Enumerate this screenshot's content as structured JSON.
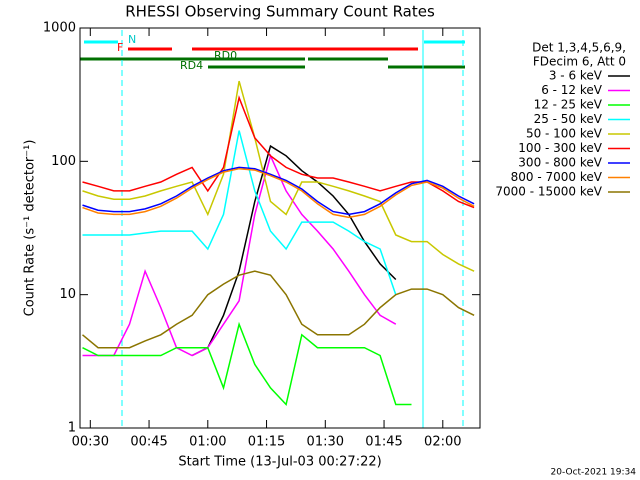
{
  "chart_data": {
    "type": "line",
    "title": "RHESSI Observing Summary Count Rates",
    "xlabel": "Start Time (13-Jul-03 00:27:22)",
    "ylabel": "Count Rate (s⁻¹ detector⁻¹)",
    "legend_header": [
      "Det 1,3,4,5,6,9,",
      "FDecim 6, Att 0"
    ],
    "flags": [
      "N",
      "F",
      "RD0",
      "RD4"
    ],
    "timestamp": "20-Oct-2021 19:34",
    "log_y": true,
    "xlim": [
      27.37,
      129.5
    ],
    "ylim": [
      1,
      1000
    ],
    "yticks": [
      1,
      10,
      100,
      1000
    ],
    "xticks": [
      {
        "value": 30,
        "label": "00:30"
      },
      {
        "value": 45,
        "label": "00:45"
      },
      {
        "value": 60,
        "label": "01:00"
      },
      {
        "value": 75,
        "label": "01:15"
      },
      {
        "value": 90,
        "label": "01:30"
      },
      {
        "value": 105,
        "label": "01:45"
      },
      {
        "value": 120,
        "label": "02:00"
      }
    ],
    "x": [
      28,
      32,
      36,
      40,
      44,
      48,
      52,
      56,
      60,
      64,
      68,
      72,
      76,
      80,
      84,
      88,
      92,
      96,
      100,
      104,
      108,
      112,
      116,
      120,
      124,
      128
    ],
    "series": [
      {
        "name": "3 - 6 keV",
        "color": "#000000",
        "values": [
          null,
          null,
          null,
          null,
          null,
          null,
          null,
          3.5,
          4,
          7,
          15,
          50,
          130,
          110,
          85,
          70,
          55,
          40,
          25,
          17,
          13,
          null,
          null,
          null,
          null,
          null
        ]
      },
      {
        "name": "6 - 12 keV",
        "color": "#ff00ff",
        "values": [
          3.5,
          3.5,
          3.5,
          6,
          15,
          8,
          4,
          3.5,
          4,
          6,
          9,
          40,
          110,
          60,
          40,
          30,
          22,
          15,
          10,
          7,
          6,
          null,
          null,
          null,
          null,
          null
        ]
      },
      {
        "name": "12 - 25 keV",
        "color": "#00ff00",
        "values": [
          4,
          3.5,
          3.5,
          3.5,
          3.5,
          3.5,
          4,
          4,
          4,
          2,
          6,
          3,
          2,
          1.5,
          5,
          4,
          4,
          4,
          4,
          3.5,
          1.5,
          1.5,
          null,
          null,
          null,
          null
        ]
      },
      {
        "name": "25 - 50 keV",
        "color": "#00ffff",
        "values": [
          28,
          28,
          28,
          28,
          29,
          30,
          30,
          30,
          22,
          40,
          170,
          60,
          30,
          22,
          35,
          35,
          35,
          30,
          25,
          22,
          10,
          null,
          null,
          null,
          null,
          null
        ]
      },
      {
        "name": "50 - 100 keV",
        "color": "#c8c800",
        "values": [
          60,
          55,
          52,
          52,
          55,
          60,
          65,
          70,
          40,
          80,
          400,
          150,
          50,
          40,
          70,
          70,
          65,
          60,
          55,
          50,
          28,
          25,
          25,
          20,
          17,
          15
        ]
      },
      {
        "name": "100 - 300 keV",
        "color": "#ff0000",
        "values": [
          70,
          65,
          60,
          60,
          65,
          70,
          80,
          90,
          60,
          90,
          300,
          150,
          110,
          90,
          80,
          75,
          75,
          70,
          65,
          60,
          65,
          70,
          70,
          60,
          50,
          45
        ]
      },
      {
        "name": "300 - 800 keV",
        "color": "#0000ff",
        "values": [
          47,
          43,
          42,
          42,
          44,
          48,
          55,
          65,
          75,
          85,
          90,
          88,
          80,
          72,
          62,
          50,
          42,
          40,
          42,
          48,
          58,
          68,
          72,
          65,
          55,
          48
        ]
      },
      {
        "name": "800 - 7000 keV",
        "color": "#ff8000",
        "values": [
          45,
          41,
          40,
          40,
          42,
          46,
          53,
          63,
          73,
          83,
          88,
          86,
          78,
          70,
          60,
          48,
          40,
          38,
          40,
          46,
          56,
          66,
          70,
          63,
          53,
          46
        ]
      },
      {
        "name": "7000 - 15000 keV",
        "color": "#8b7500",
        "values": [
          5,
          4,
          4,
          4,
          4.5,
          5,
          6,
          7,
          10,
          12,
          14,
          15,
          14,
          10,
          6,
          5,
          5,
          5,
          6,
          8,
          10,
          11,
          11,
          10,
          8,
          7
        ]
      }
    ]
  }
}
